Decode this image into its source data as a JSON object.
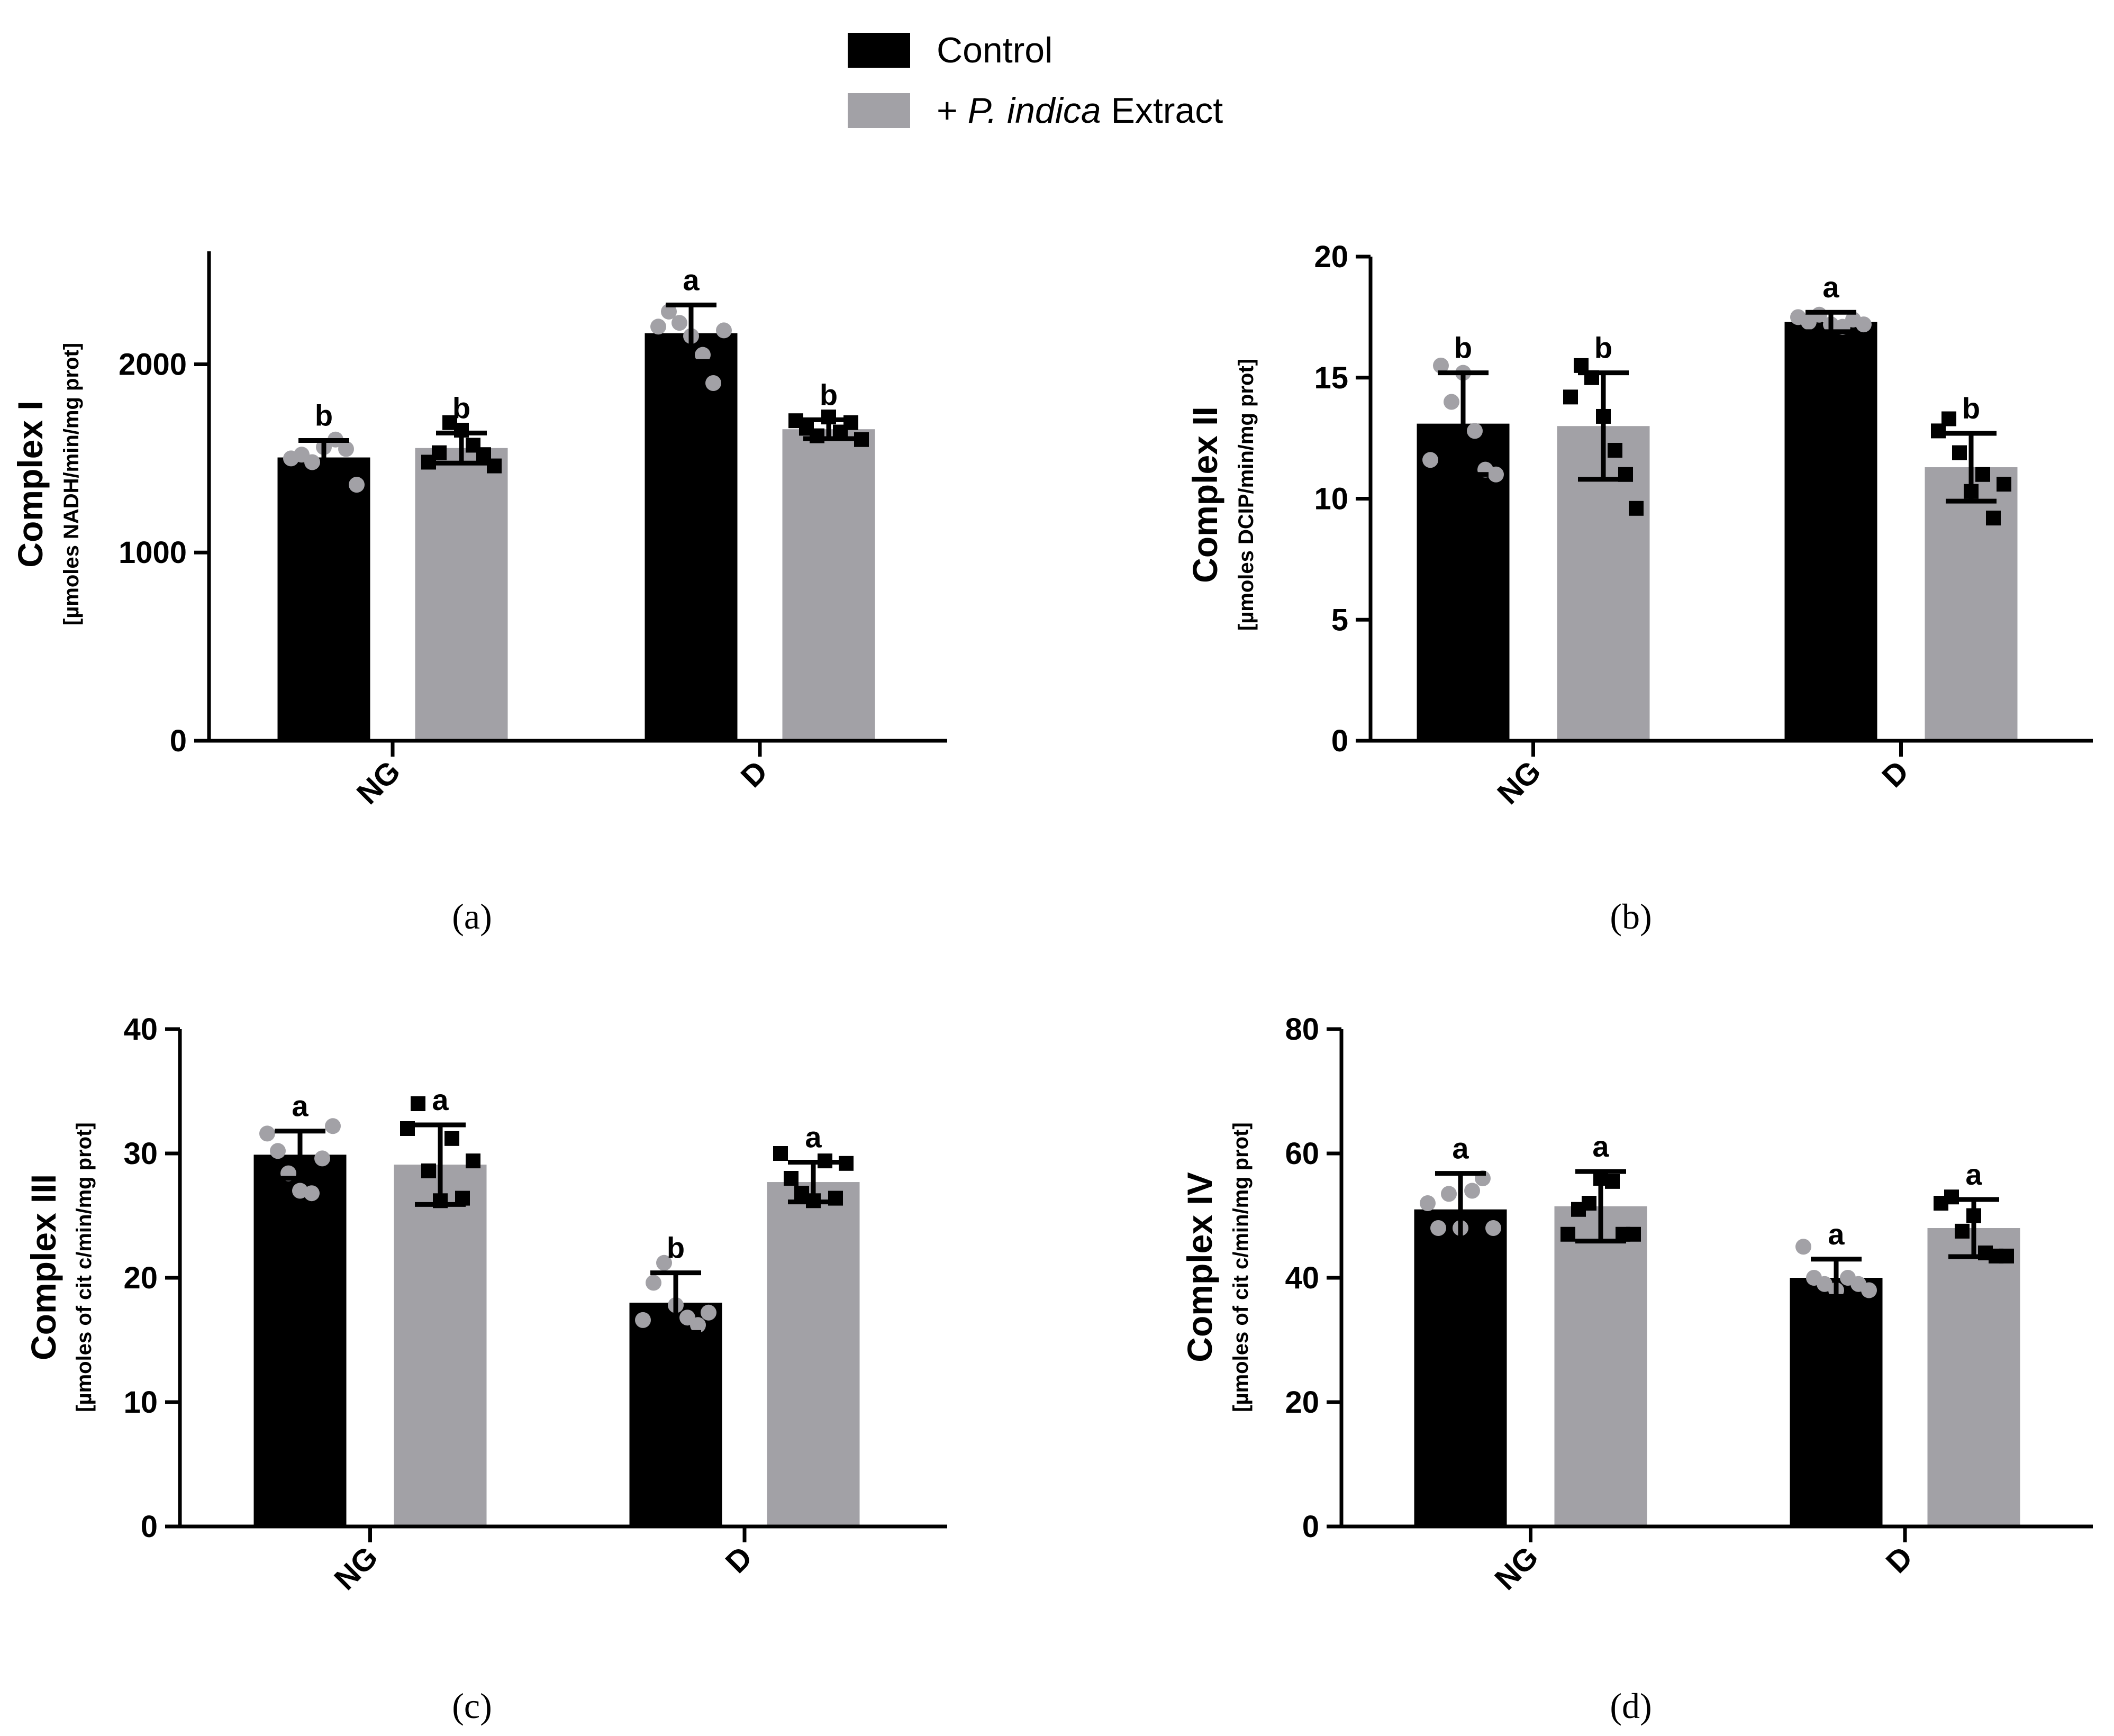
{
  "legend": {
    "items": [
      {
        "label_pre": "",
        "label_italic": "",
        "label_post": "Control",
        "color": "#000000"
      },
      {
        "label_pre": "+ ",
        "label_italic": "P. indica",
        "label_post": " Extract",
        "color": "#a2a1a6"
      }
    ]
  },
  "colors": {
    "control": "#000000",
    "extract": "#a2a1a6",
    "control_points": "#a2a1a6",
    "extract_points": "#000000"
  },
  "chart_data": [
    {
      "type": "bar",
      "panel_label": "(a)",
      "ylabel_main": "Complex I",
      "ylabel_unit": "[µmoles NADH/min/mg prot]",
      "categories": [
        "NG",
        "D"
      ],
      "ylim": [
        0,
        2600
      ],
      "yticks": [
        0,
        1000,
        2000
      ],
      "series": [
        {
          "name": "Control",
          "values": [
            1505,
            2165
          ],
          "errors": [
            90,
            150
          ],
          "letters": [
            "b",
            "a"
          ],
          "points": [
            [
              1500,
              1520,
              1480,
              1560,
              1600,
              1550,
              1360
            ],
            [
              2200,
              2280,
              2220,
              2150,
              2050,
              1900,
              2180
            ]
          ]
        },
        {
          "name": "+ P. indica Extract",
          "values": [
            1555,
            1655
          ],
          "errors": [
            80,
            50
          ],
          "letters": [
            "b",
            "b"
          ],
          "points": [
            [
              1480,
              1530,
              1690,
              1650,
              1570,
              1520,
              1460
            ],
            [
              1700,
              1660,
              1620,
              1720,
              1640,
              1690,
              1600
            ]
          ]
        }
      ]
    },
    {
      "type": "bar",
      "panel_label": "(b)",
      "ylabel_main": "Complex II",
      "ylabel_unit": "[µmoles DCIP/min/mg prot]",
      "categories": [
        "NG",
        "D"
      ],
      "ylim": [
        0,
        20
      ],
      "yticks": [
        0,
        5,
        10,
        15,
        20
      ],
      "series": [
        {
          "name": "Control",
          "values": [
            13.1,
            17.3
          ],
          "errors": [
            2.1,
            0.4
          ],
          "letters": [
            "b",
            "a"
          ],
          "points": [
            [
              11.6,
              15.5,
              14.0,
              15.2,
              12.8,
              11.2,
              11.0
            ],
            [
              17.5,
              17.3,
              17.6,
              17.2,
              17.1,
              17.4,
              17.2
            ]
          ]
        },
        {
          "name": "+ P. indica Extract",
          "values": [
            13.0,
            11.3
          ],
          "errors": [
            2.2,
            1.4
          ],
          "letters": [
            "b",
            "b"
          ],
          "points": [
            [
              14.2,
              15.5,
              15.0,
              13.4,
              12.0,
              11.0,
              9.6
            ],
            [
              12.8,
              13.3,
              11.9,
              10.3,
              11.0,
              9.2,
              10.6
            ]
          ]
        }
      ]
    },
    {
      "type": "bar",
      "panel_label": "(c)",
      "ylabel_main": "Complex III",
      "ylabel_unit": "[µmoles of cit c/min/mg prot]",
      "categories": [
        "NG",
        "D"
      ],
      "ylim": [
        0,
        40
      ],
      "yticks": [
        0,
        10,
        20,
        30,
        40
      ],
      "series": [
        {
          "name": "Control",
          "values": [
            29.9,
            18.0
          ],
          "errors": [
            1.9,
            2.4
          ],
          "letters": [
            "a",
            "b"
          ],
          "points": [
            [
              31.6,
              30.2,
              28.4,
              27.0,
              26.8,
              29.6,
              32.2
            ],
            [
              16.6,
              19.6,
              21.2,
              17.8,
              16.8,
              16.2,
              17.2
            ]
          ]
        },
        {
          "name": "+ P. indica Extract",
          "values": [
            29.1,
            27.7
          ],
          "errors": [
            3.2,
            1.6
          ],
          "letters": [
            "a",
            "a"
          ],
          "points": [
            [
              32.0,
              34.0,
              28.6,
              26.2,
              31.2,
              26.4,
              29.4
            ],
            [
              30.0,
              28.0,
              26.8,
              26.2,
              29.4,
              26.4,
              29.2
            ]
          ]
        }
      ]
    },
    {
      "type": "bar",
      "panel_label": "(d)",
      "ylabel_main": "Complex IV",
      "ylabel_unit": "[µmoles of cit c/min/mg prot]",
      "categories": [
        "NG",
        "D"
      ],
      "ylim": [
        0,
        80
      ],
      "yticks": [
        0,
        20,
        40,
        60,
        80
      ],
      "series": [
        {
          "name": "Control",
          "values": [
            51,
            40
          ],
          "errors": [
            5.8,
            3.0
          ],
          "letters": [
            "a",
            "a"
          ],
          "points": [
            [
              52,
              48,
              53.5,
              48,
              54,
              56,
              48
            ],
            [
              45,
              40,
              39,
              38,
              40,
              39,
              38
            ]
          ]
        },
        {
          "name": "+ P. indica Extract",
          "values": [
            51.5,
            48
          ],
          "errors": [
            5.6,
            4.6
          ],
          "letters": [
            "a",
            "a"
          ],
          "points": [
            [
              47,
              51,
              52,
              56,
              55.5,
              47,
              47
            ],
            [
              52,
              53,
              47.5,
              50,
              44,
              43.5,
              43.5
            ]
          ]
        }
      ]
    }
  ]
}
